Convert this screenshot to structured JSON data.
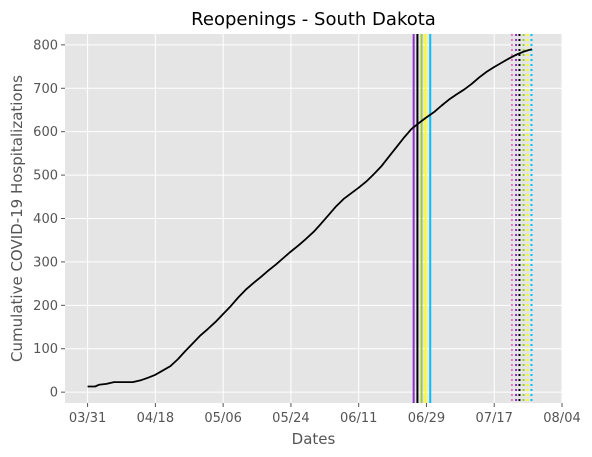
{
  "chart_data": {
    "type": "line",
    "title": "Reopenings - South Dakota",
    "xlabel": "Dates",
    "ylabel": "Cumulative COVID-19 Hospitalizations",
    "x_tick_labels": [
      "03/31",
      "04/18",
      "05/06",
      "05/24",
      "06/11",
      "06/29",
      "07/17",
      "08/04"
    ],
    "x_tick_days": [
      0,
      18,
      36,
      54,
      72,
      90,
      108,
      126
    ],
    "xlim_days": [
      -6,
      126
    ],
    "ylim": [
      -25,
      825
    ],
    "y_ticks": [
      0,
      100,
      200,
      300,
      400,
      500,
      600,
      700,
      800
    ],
    "grid": true,
    "series": [
      {
        "color": "#000000",
        "points": [
          [
            0,
            13
          ],
          [
            2,
            13
          ],
          [
            3,
            17
          ],
          [
            5,
            19
          ],
          [
            7,
            23
          ],
          [
            9,
            23
          ],
          [
            12,
            23
          ],
          [
            14,
            27
          ],
          [
            16,
            33
          ],
          [
            18,
            40
          ],
          [
            20,
            50
          ],
          [
            22,
            60
          ],
          [
            24,
            76
          ],
          [
            26,
            95
          ],
          [
            28,
            113
          ],
          [
            30,
            131
          ],
          [
            32,
            146
          ],
          [
            34,
            162
          ],
          [
            36,
            180
          ],
          [
            38,
            198
          ],
          [
            40,
            218
          ],
          [
            42,
            236
          ],
          [
            44,
            251
          ],
          [
            46,
            265
          ],
          [
            48,
            280
          ],
          [
            50,
            294
          ],
          [
            52,
            309
          ],
          [
            54,
            324
          ],
          [
            56,
            338
          ],
          [
            58,
            353
          ],
          [
            60,
            369
          ],
          [
            62,
            388
          ],
          [
            64,
            408
          ],
          [
            66,
            428
          ],
          [
            68,
            445
          ],
          [
            70,
            458
          ],
          [
            72,
            471
          ],
          [
            74,
            485
          ],
          [
            76,
            502
          ],
          [
            78,
            520
          ],
          [
            80,
            542
          ],
          [
            82,
            564
          ],
          [
            84,
            586
          ],
          [
            86,
            606
          ],
          [
            88,
            620
          ],
          [
            90,
            633
          ],
          [
            92,
            645
          ],
          [
            94,
            660
          ],
          [
            96,
            674
          ],
          [
            98,
            686
          ],
          [
            100,
            697
          ],
          [
            102,
            710
          ],
          [
            104,
            725
          ],
          [
            106,
            738
          ],
          [
            108,
            749
          ],
          [
            110,
            759
          ],
          [
            112,
            769
          ],
          [
            114,
            778
          ],
          [
            116,
            785
          ],
          [
            118,
            790
          ]
        ]
      }
    ],
    "vertical_lines": [
      {
        "day": 86.6,
        "color": "#8b2fc9",
        "style": "solid"
      },
      {
        "day": 87.6,
        "color": "#000000",
        "style": "solid"
      },
      {
        "day": 88.7,
        "color": "#9acd32",
        "style": "solid"
      },
      {
        "day": 89.8,
        "color": "#ffff00",
        "style": "solid"
      },
      {
        "day": 91.0,
        "color": "#00bfff",
        "style": "solid"
      },
      {
        "day": 112.7,
        "color": "#e377c2",
        "style": "dotted"
      },
      {
        "day": 113.8,
        "color": "#8b2fc9",
        "style": "dotted"
      },
      {
        "day": 114.7,
        "color": "#000000",
        "style": "dotted"
      },
      {
        "day": 115.8,
        "color": "#9acd32",
        "style": "dotted"
      },
      {
        "day": 116.9,
        "color": "#ffff00",
        "style": "dotted"
      },
      {
        "day": 117.9,
        "color": "#00bfff",
        "style": "dotted"
      }
    ],
    "colors": {
      "plot_background": "#e5e5e5",
      "grid": "#ffffff",
      "tick_text": "#555555"
    }
  }
}
